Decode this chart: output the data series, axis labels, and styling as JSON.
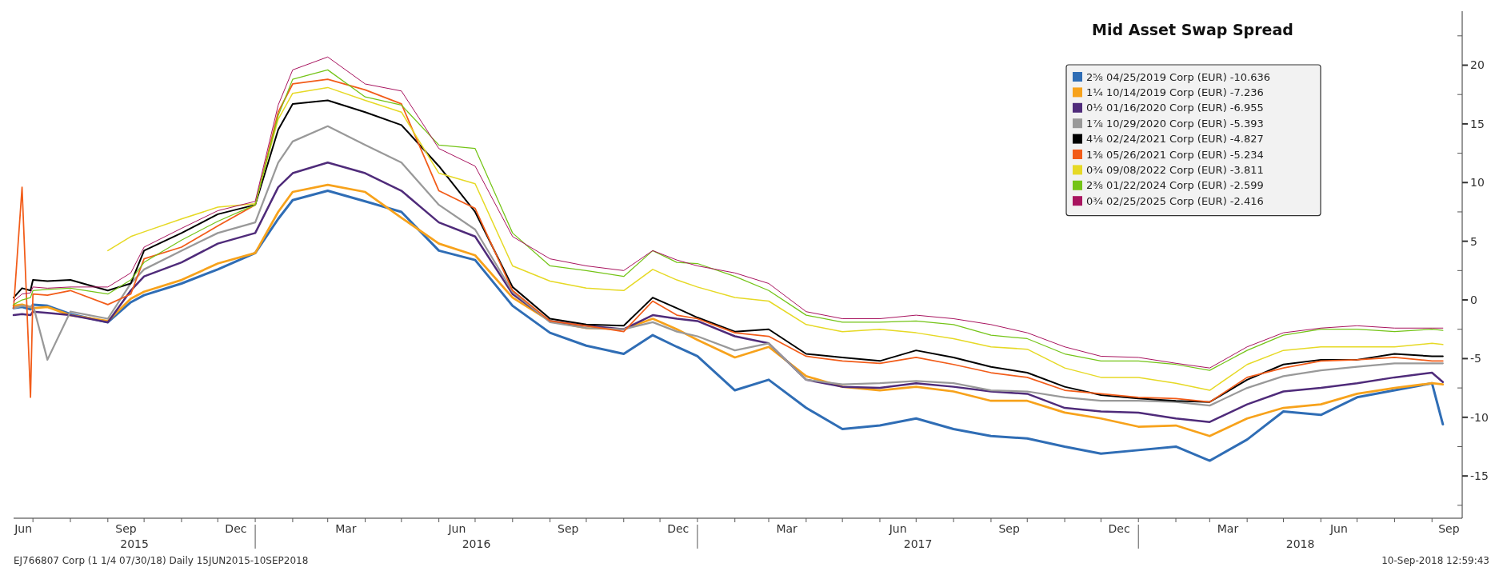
{
  "chart_data": {
    "type": "line",
    "title": "Mid Asset Swap Spread",
    "x": [
      "2015-06-15",
      "2015-06-22",
      "2015-06-29",
      "2015-07-01",
      "2015-07-13",
      "2015-08-01",
      "2015-09-01",
      "2015-09-20",
      "2015-10-01",
      "2015-11-01",
      "2015-12-01",
      "2016-01-01",
      "2016-01-20",
      "2016-02-01",
      "2016-03-01",
      "2016-04-01",
      "2016-05-01",
      "2016-06-01",
      "2016-07-01",
      "2016-08-01",
      "2016-09-01",
      "2016-10-01",
      "2016-11-01",
      "2016-11-25",
      "2016-12-15",
      "2017-01-01",
      "2017-02-01",
      "2017-03-01",
      "2017-04-01",
      "2017-05-01",
      "2017-06-01",
      "2017-07-01",
      "2017-08-01",
      "2017-09-01",
      "2017-10-01",
      "2017-11-01",
      "2017-12-01",
      "2018-01-01",
      "2018-02-01",
      "2018-03-01",
      "2018-04-01",
      "2018-05-01",
      "2018-06-01",
      "2018-07-01",
      "2018-08-01",
      "2018-09-01",
      "2018-09-10"
    ],
    "series": [
      {
        "name": "2⅝ 04/25/2019 Corp (EUR) -10.636",
        "color": "#2f6db5",
        "values": [
          -0.7,
          -0.6,
          -0.8,
          -0.4,
          -0.5,
          -1.2,
          -1.9,
          -0.2,
          0.4,
          1.4,
          2.6,
          4.0,
          6.9,
          8.5,
          9.3,
          8.4,
          7.5,
          4.2,
          3.4,
          -0.5,
          -2.8,
          -3.9,
          -4.6,
          -3.0,
          -4.0,
          -4.8,
          -7.7,
          -6.8,
          -9.2,
          -11.0,
          -10.7,
          -10.1,
          -11.0,
          -11.6,
          -11.8,
          -12.5,
          -13.1,
          -12.8,
          -12.5,
          -13.7,
          -11.9,
          -9.5,
          -9.8,
          -8.3,
          -7.7,
          -7.1,
          -10.6
        ]
      },
      {
        "name": "1¼ 10/14/2019 Corp (EUR) -7.236",
        "color": "#f7a21b",
        "values": [
          -0.5,
          -0.4,
          -0.6,
          -0.7,
          -0.6,
          -1.3,
          -1.8,
          0.1,
          0.7,
          1.7,
          3.1,
          4.0,
          7.5,
          9.2,
          9.8,
          9.2,
          7.0,
          4.8,
          3.8,
          0.2,
          -1.8,
          -2.4,
          -2.5,
          -1.6,
          -2.5,
          -3.4,
          -4.9,
          -4.0,
          -6.5,
          -7.4,
          -7.7,
          -7.4,
          -7.8,
          -8.6,
          -8.6,
          -9.6,
          -10.1,
          -10.8,
          -10.7,
          -11.6,
          -10.1,
          -9.2,
          -8.9,
          -8.0,
          -7.5,
          -7.1,
          -7.2
        ]
      },
      {
        "name": "0½ 01/16/2020 Corp (EUR) -6.955",
        "color": "#4f2b7a",
        "values": [
          -1.3,
          -1.2,
          -1.3,
          -1.0,
          -1.1,
          -1.3,
          -1.9,
          0.8,
          2.0,
          3.2,
          4.8,
          5.7,
          9.6,
          10.8,
          11.7,
          10.8,
          9.3,
          6.6,
          5.4,
          0.5,
          -1.8,
          -2.2,
          -2.5,
          -1.3,
          -1.6,
          -1.8,
          -3.1,
          -3.7,
          -6.8,
          -7.4,
          -7.5,
          -7.1,
          -7.4,
          -7.8,
          -8.0,
          -9.2,
          -9.5,
          -9.6,
          -10.1,
          -10.4,
          -8.9,
          -7.8,
          -7.5,
          -7.1,
          -6.6,
          -6.2,
          -7.0
        ]
      },
      {
        "name": "1⅞ 10/29/2020 Corp (EUR) -5.393",
        "color": "#999999",
        "values": [
          -0.7,
          -0.5,
          -0.6,
          -0.4,
          -5.1,
          -1.0,
          -1.6,
          1.4,
          2.6,
          4.2,
          5.7,
          6.6,
          11.7,
          13.5,
          14.8,
          13.2,
          11.7,
          8.1,
          6.0,
          0.7,
          -1.9,
          -2.4,
          -2.5,
          -1.9,
          -2.7,
          -3.1,
          -4.3,
          -3.7,
          -6.8,
          -7.2,
          -7.1,
          -6.9,
          -7.1,
          -7.7,
          -7.8,
          -8.3,
          -8.6,
          -8.6,
          -8.7,
          -9.0,
          -7.5,
          -6.5,
          -6.0,
          -5.7,
          -5.4,
          -5.4,
          -5.4
        ]
      },
      {
        "name": "4⅛ 02/24/2021 Corp (EUR) -4.827",
        "color": "#000000",
        "values": [
          0.2,
          1.0,
          0.8,
          1.7,
          1.6,
          1.7,
          0.8,
          1.4,
          4.2,
          5.7,
          7.3,
          8.1,
          14.5,
          16.7,
          17.0,
          16.0,
          14.9,
          11.4,
          7.5,
          1.1,
          -1.6,
          -2.1,
          -2.2,
          0.2,
          -0.7,
          -1.5,
          -2.7,
          -2.5,
          -4.6,
          -4.9,
          -5.2,
          -4.3,
          -4.9,
          -5.7,
          -6.2,
          -7.4,
          -8.1,
          -8.4,
          -8.6,
          -8.7,
          -6.8,
          -5.5,
          -5.1,
          -5.1,
          -4.6,
          -4.8,
          -4.8
        ]
      },
      {
        "name": "1⅜ 05/26/2021 Corp (EUR) -5.234",
        "color": "#f25c19",
        "values": [
          -0.7,
          9.6,
          -8.3,
          0.5,
          0.4,
          0.8,
          -0.4,
          0.5,
          3.5,
          4.5,
          6.3,
          8.1,
          16.0,
          18.4,
          18.8,
          17.9,
          16.7,
          9.3,
          7.8,
          0.8,
          -1.8,
          -2.2,
          -2.7,
          -0.1,
          -1.3,
          -1.6,
          -2.8,
          -3.1,
          -4.8,
          -5.2,
          -5.4,
          -4.9,
          -5.5,
          -6.2,
          -6.6,
          -7.7,
          -8.0,
          -8.3,
          -8.4,
          -8.7,
          -6.6,
          -5.8,
          -5.2,
          -5.1,
          -4.9,
          -5.2,
          -5.2
        ]
      },
      {
        "name": "0¾ 09/08/2022 Corp (EUR) -3.811",
        "color": "#e6d925",
        "values": [
          null,
          null,
          null,
          null,
          null,
          null,
          4.2,
          5.4,
          5.8,
          6.9,
          7.9,
          8.2,
          15.4,
          17.6,
          18.1,
          17.0,
          16.0,
          10.8,
          9.9,
          2.9,
          1.6,
          1.0,
          0.8,
          2.6,
          1.7,
          1.1,
          0.2,
          -0.1,
          -2.1,
          -2.7,
          -2.5,
          -2.8,
          -3.3,
          -4.0,
          -4.2,
          -5.8,
          -6.6,
          -6.6,
          -7.1,
          -7.7,
          -5.5,
          -4.3,
          -4.0,
          -4.0,
          -4.0,
          -3.7,
          -3.8
        ]
      },
      {
        "name": "2⅜ 01/22/2024 Corp (EUR) -2.599",
        "color": "#74c417",
        "values": [
          -0.4,
          0.0,
          0.2,
          0.8,
          0.9,
          1.0,
          0.5,
          1.7,
          3.2,
          5.1,
          6.7,
          8.1,
          15.7,
          18.8,
          19.6,
          17.3,
          16.6,
          13.2,
          12.9,
          5.7,
          2.9,
          2.5,
          2.0,
          4.2,
          3.2,
          3.1,
          2.0,
          0.8,
          -1.3,
          -1.9,
          -1.9,
          -1.8,
          -2.1,
          -3.0,
          -3.3,
          -4.6,
          -5.2,
          -5.2,
          -5.5,
          -6.0,
          -4.3,
          -3.0,
          -2.5,
          -2.5,
          -2.7,
          -2.5,
          -2.6
        ]
      },
      {
        "name": "0¾ 02/25/2025 Corp (EUR) -2.416",
        "color": "#a8145f",
        "values": [
          -0.1,
          0.5,
          0.6,
          1.1,
          1.0,
          1.1,
          1.1,
          2.3,
          4.5,
          6.1,
          7.6,
          8.4,
          16.6,
          19.6,
          20.7,
          18.4,
          17.8,
          12.9,
          11.4,
          5.4,
          3.5,
          2.9,
          2.5,
          4.2,
          3.4,
          2.9,
          2.3,
          1.4,
          -1.0,
          -1.6,
          -1.6,
          -1.3,
          -1.6,
          -2.1,
          -2.8,
          -4.0,
          -4.8,
          -4.9,
          -5.4,
          -5.8,
          -4.0,
          -2.8,
          -2.4,
          -2.2,
          -2.4,
          -2.4,
          -2.4
        ]
      }
    ],
    "xlim": [
      "2015-06-15",
      "2018-09-26"
    ],
    "xticks": [
      {
        "value": "2015-06-23",
        "label": "Jun"
      },
      {
        "value": "2015-09-16",
        "label": "Sep"
      },
      {
        "value": "2015-12-16",
        "label": "Dec"
      },
      {
        "value": "2016-03-16",
        "label": "Mar"
      },
      {
        "value": "2016-06-16",
        "label": "Jun"
      },
      {
        "value": "2016-09-16",
        "label": "Sep"
      },
      {
        "value": "2016-12-16",
        "label": "Dec"
      },
      {
        "value": "2017-03-16",
        "label": "Mar"
      },
      {
        "value": "2017-06-16",
        "label": "Jun"
      },
      {
        "value": "2017-09-16",
        "label": "Sep"
      },
      {
        "value": "2017-12-16",
        "label": "Dec"
      },
      {
        "value": "2018-03-16",
        "label": "Mar"
      },
      {
        "value": "2018-06-16",
        "label": "Jun"
      },
      {
        "value": "2018-09-15",
        "label": "Sep"
      },
      {
        "value": "2015-07-01",
        "label": null
      },
      {
        "value": "2015-08-01",
        "label": null
      },
      {
        "value": "2015-09-01",
        "label": null
      },
      {
        "value": "2015-10-01",
        "label": null
      },
      {
        "value": "2015-11-01",
        "label": null
      },
      {
        "value": "2015-12-01",
        "label": null
      },
      {
        "value": "2016-01-01",
        "label": null
      },
      {
        "value": "2016-02-01",
        "label": null
      },
      {
        "value": "2016-03-01",
        "label": null
      },
      {
        "value": "2016-04-01",
        "label": null
      },
      {
        "value": "2016-05-01",
        "label": null
      },
      {
        "value": "2016-06-01",
        "label": null
      },
      {
        "value": "2016-07-01",
        "label": null
      },
      {
        "value": "2016-08-01",
        "label": null
      },
      {
        "value": "2016-09-01",
        "label": null
      },
      {
        "value": "2016-10-01",
        "label": null
      },
      {
        "value": "2016-11-01",
        "label": null
      },
      {
        "value": "2016-12-01",
        "label": null
      },
      {
        "value": "2017-01-01",
        "label": null
      },
      {
        "value": "2017-02-01",
        "label": null
      },
      {
        "value": "2017-03-01",
        "label": null
      },
      {
        "value": "2017-04-01",
        "label": null
      },
      {
        "value": "2017-05-01",
        "label": null
      },
      {
        "value": "2017-06-01",
        "label": null
      },
      {
        "value": "2017-07-01",
        "label": null
      },
      {
        "value": "2017-08-01",
        "label": null
      },
      {
        "value": "2017-09-01",
        "label": null
      },
      {
        "value": "2017-10-01",
        "label": null
      },
      {
        "value": "2017-11-01",
        "label": null
      },
      {
        "value": "2017-12-01",
        "label": null
      },
      {
        "value": "2018-01-01",
        "label": null
      },
      {
        "value": "2018-02-01",
        "label": null
      },
      {
        "value": "2018-03-01",
        "label": null
      },
      {
        "value": "2018-04-01",
        "label": null
      },
      {
        "value": "2018-05-01",
        "label": null
      },
      {
        "value": "2018-06-01",
        "label": null
      },
      {
        "value": "2018-07-01",
        "label": null
      },
      {
        "value": "2018-08-01",
        "label": null
      },
      {
        "value": "2018-09-01",
        "label": null
      }
    ],
    "ylim": [
      -18.6,
      24.6
    ],
    "yticks": [
      20,
      15,
      10,
      5,
      0,
      -5,
      -10,
      -15,
      {
        "value": 22.5,
        "label": null
      },
      {
        "value": 17.5,
        "label": null
      },
      {
        "value": 12.5,
        "label": null
      },
      {
        "value": 7.5,
        "label": null
      },
      {
        "value": 2.5,
        "label": null
      },
      {
        "value": -2.5,
        "label": null
      },
      {
        "value": -7.5,
        "label": null
      },
      {
        "value": -12.5,
        "label": null
      },
      {
        "value": -17.5,
        "label": null
      }
    ],
    "legend": "top right",
    "line_style": "solid",
    "annotations": [
      "EJ766807 Corp (1 1/4 07/30/18)  Daily 15JUN2015-10SEP2018",
      "10-Sep-2018 12:59:43",
      "2015",
      "2016",
      "2017",
      "2018"
    ]
  }
}
